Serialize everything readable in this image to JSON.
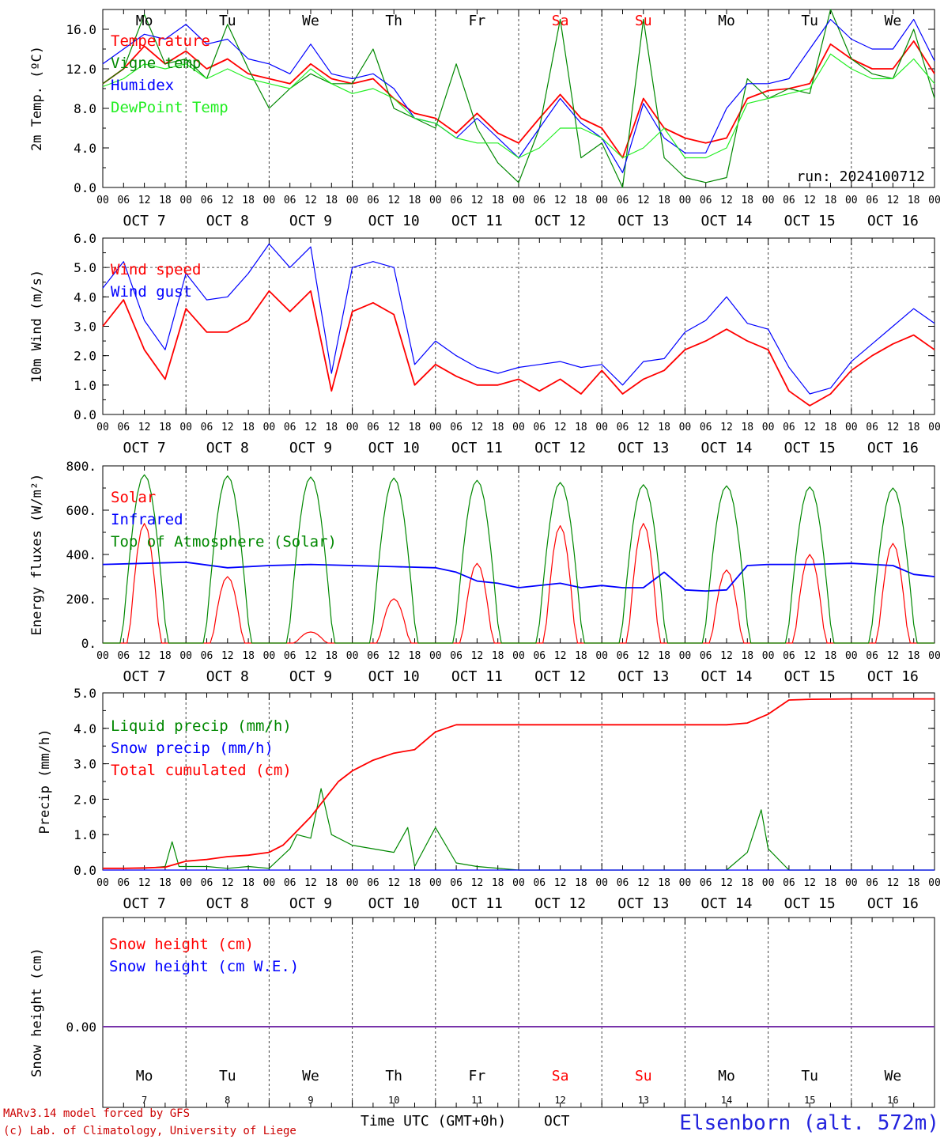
{
  "chart_data": {
    "type": "line",
    "x_axis": {
      "unit_label": "Time UTC (GMT+0h)",
      "month": "OCT",
      "dates": [
        "OCT  7",
        "OCT  8",
        "OCT  9",
        "OCT 10",
        "OCT 11",
        "OCT 12",
        "OCT 13",
        "OCT 14",
        "OCT 15",
        "OCT 16"
      ],
      "weekdays": [
        "Mo",
        "Tu",
        "We",
        "Th",
        "Fr",
        "Sa",
        "Su",
        "Mo",
        "Tu",
        "We"
      ],
      "weekend_days": [
        "Sa",
        "Su"
      ],
      "day_numbers": [
        "7",
        "8",
        "9",
        "10",
        "11",
        "12",
        "13",
        "14",
        "15",
        "16"
      ],
      "hour_ticks": [
        "00",
        "06",
        "12",
        "18"
      ],
      "range_hours": [
        0,
        240
      ]
    },
    "panels": [
      {
        "id": "temperature",
        "ylabel": "2m Temp. (ºC)",
        "ylim": [
          0,
          18
        ],
        "yticks": [
          "0.0",
          "4.0",
          "8.0",
          "12.0",
          "16.0"
        ],
        "ytick_values": [
          0,
          4,
          8,
          12,
          16
        ],
        "annotation": "run: 2024100712",
        "series": [
          {
            "name": "Temperature",
            "color": "#ff0000",
            "x": [
              0,
              6,
              12,
              18,
              24,
              30,
              36,
              42,
              48,
              54,
              60,
              66,
              72,
              78,
              84,
              90,
              96,
              102,
              108,
              114,
              120,
              126,
              132,
              138,
              144,
              150,
              156,
              162,
              168,
              174,
              180,
              186,
              192,
              198,
              204,
              210,
              216,
              222,
              228,
              234,
              240
            ],
            "values": [
              10.5,
              12,
              14.3,
              12.5,
              13.8,
              12,
              13,
              11.5,
              11,
              10.5,
              12.5,
              11,
              10.5,
              11,
              9,
              7.5,
              7,
              5.5,
              7.5,
              5.5,
              4.5,
              7,
              9.4,
              7,
              6,
              3,
              9,
              6,
              5,
              4.5,
              5,
              9,
              9.8,
              10,
              10.5,
              14.5,
              13,
              12,
              12,
              14.8,
              11.5
            ]
          },
          {
            "name": "Vigne temp",
            "color": "#008800",
            "x": [
              0,
              6,
              12,
              18,
              24,
              30,
              36,
              42,
              48,
              54,
              60,
              66,
              72,
              78,
              84,
              90,
              96,
              102,
              108,
              114,
              120,
              126,
              132,
              138,
              144,
              150,
              156,
              162,
              168,
              174,
              180,
              186,
              192,
              198,
              204,
              210,
              216,
              222,
              228,
              234,
              240
            ],
            "values": [
              10.5,
              12,
              17.5,
              12.5,
              13,
              11,
              16.5,
              12,
              8,
              10,
              11.5,
              10.5,
              10.5,
              14,
              8,
              7,
              6,
              12.5,
              6,
              2.5,
              0.5,
              6,
              17,
              3,
              4.5,
              0,
              17,
              3,
              1,
              0.5,
              1,
              11,
              9,
              10,
              9.5,
              18,
              13,
              11.5,
              11,
              16,
              9
            ]
          },
          {
            "name": "Humidex",
            "color": "#0000ff",
            "x": [
              0,
              6,
              12,
              18,
              24,
              30,
              36,
              42,
              48,
              54,
              60,
              66,
              72,
              78,
              84,
              90,
              96,
              102,
              108,
              114,
              120,
              126,
              132,
              138,
              144,
              150,
              156,
              162,
              168,
              174,
              180,
              186,
              192,
              198,
              204,
              210,
              216,
              222,
              228,
              234,
              240
            ],
            "values": [
              12.5,
              14,
              15.5,
              15,
              16.5,
              14.5,
              15,
              13,
              12.5,
              11.5,
              14.5,
              11.5,
              11,
              11.5,
              10,
              7,
              6.5,
              5,
              7,
              5,
              3,
              6,
              9,
              6.5,
              5,
              1.5,
              8.5,
              5,
              3.5,
              3.5,
              8,
              10.5,
              10.5,
              11,
              14,
              17,
              15,
              14,
              14,
              17,
              12.8
            ]
          },
          {
            "name": "DewPoint Temp",
            "color": "#22ee22",
            "x": [
              0,
              6,
              12,
              18,
              24,
              30,
              36,
              42,
              48,
              54,
              60,
              66,
              72,
              78,
              84,
              90,
              96,
              102,
              108,
              114,
              120,
              126,
              132,
              138,
              144,
              150,
              156,
              162,
              168,
              174,
              180,
              186,
              192,
              198,
              204,
              210,
              216,
              222,
              228,
              234,
              240
            ],
            "values": [
              10.2,
              11,
              12.5,
              12,
              12.5,
              11,
              12,
              11,
              10.5,
              10,
              12,
              10.5,
              9.5,
              10,
              9,
              7,
              6.5,
              5,
              4.5,
              4.5,
              3,
              4,
              6,
              6,
              5,
              3,
              4,
              6,
              3,
              3,
              4,
              8.5,
              9,
              9.5,
              10,
              13.5,
              12,
              11,
              11,
              13,
              10.5
            ]
          }
        ]
      },
      {
        "id": "wind",
        "ylabel": "10m Wind (m/s)",
        "ylim": [
          0,
          6
        ],
        "yticks": [
          "0.0",
          "1.0",
          "2.0",
          "3.0",
          "4.0",
          "5.0",
          "6.0"
        ],
        "ytick_values": [
          0,
          1,
          2,
          3,
          4,
          5,
          6
        ],
        "reference_line": 5,
        "series": [
          {
            "name": "Wind speed",
            "color": "#ff0000",
            "x": [
              0,
              6,
              12,
              18,
              24,
              30,
              36,
              42,
              48,
              54,
              60,
              66,
              72,
              78,
              84,
              90,
              96,
              102,
              108,
              114,
              120,
              126,
              132,
              138,
              144,
              150,
              156,
              162,
              168,
              174,
              180,
              186,
              192,
              198,
              204,
              210,
              216,
              222,
              228,
              234,
              240
            ],
            "values": [
              3,
              3.9,
              2.2,
              1.2,
              3.6,
              2.8,
              2.8,
              3.2,
              4.2,
              3.5,
              4.2,
              0.8,
              3.5,
              3.8,
              3.4,
              1,
              1.7,
              1.3,
              1,
              1,
              1.2,
              0.8,
              1.2,
              0.7,
              1.5,
              0.7,
              1.2,
              1.5,
              2.2,
              2.5,
              2.9,
              2.5,
              2.2,
              0.8,
              0.3,
              0.7,
              1.5,
              2,
              2.4,
              2.7,
              2.2
            ]
          },
          {
            "name": "Wind gust",
            "color": "#0000ff",
            "x": [
              0,
              6,
              12,
              18,
              24,
              30,
              36,
              42,
              48,
              54,
              60,
              66,
              72,
              78,
              84,
              90,
              96,
              102,
              108,
              114,
              120,
              126,
              132,
              138,
              144,
              150,
              156,
              162,
              168,
              174,
              180,
              186,
              192,
              198,
              204,
              210,
              216,
              222,
              228,
              234,
              240
            ],
            "values": [
              4.3,
              5.2,
              3.2,
              2.2,
              4.8,
              3.9,
              4,
              4.8,
              5.8,
              5,
              5.7,
              1.4,
              5,
              5.2,
              5,
              1.7,
              2.5,
              2,
              1.6,
              1.4,
              1.6,
              1.7,
              1.8,
              1.6,
              1.7,
              1,
              1.8,
              1.9,
              2.8,
              3.2,
              4,
              3.1,
              2.9,
              1.6,
              0.7,
              0.9,
              1.8,
              2.4,
              3,
              3.6,
              3.1
            ]
          }
        ]
      },
      {
        "id": "energy",
        "ylabel": "Energy fluxes (W/m²)",
        "ylim": [
          0,
          800
        ],
        "yticks": [
          "0.",
          "200.",
          "400.",
          "600.",
          "800."
        ],
        "ytick_values": [
          0,
          200,
          400,
          600,
          800
        ],
        "series": [
          {
            "name": "Solar",
            "color": "#ff0000",
            "peaks": [
              540,
              300,
              50,
              200,
              360,
              530,
              540,
              330,
              400,
              450
            ]
          },
          {
            "name": "Infrared",
            "color": "#0000ff",
            "x": [
              0,
              12,
              24,
              36,
              48,
              60,
              72,
              84,
              96,
              102,
              108,
              114,
              120,
              132,
              138,
              144,
              150,
              156,
              162,
              168,
              174,
              180,
              186,
              192,
              204,
              216,
              228,
              234,
              240
            ],
            "values": [
              355,
              360,
              365,
              340,
              350,
              355,
              350,
              345,
              340,
              320,
              280,
              270,
              250,
              270,
              250,
              260,
              250,
              250,
              320,
              240,
              235,
              240,
              350,
              355,
              355,
              360,
              350,
              310,
              300
            ]
          },
          {
            "name": "Top of Atmosphere (Solar)",
            "color": "#008800",
            "peaks": [
              760,
              755,
              750,
              745,
              735,
              725,
              715,
              710,
              705,
              700
            ]
          }
        ]
      },
      {
        "id": "precip",
        "ylabel": "Precip (mm/h)",
        "ylim": [
          0,
          5
        ],
        "yticks": [
          "0.0",
          "1.0",
          "2.0",
          "3.0",
          "4.0",
          "5.0"
        ],
        "ytick_values": [
          0,
          1,
          2,
          3,
          4,
          5
        ],
        "series": [
          {
            "name": "Liquid precip (mm/h)",
            "color": "#008800",
            "x": [
              0,
              12,
              18,
              20,
              22,
              24,
              30,
              36,
              42,
              48,
              54,
              56,
              60,
              63,
              66,
              72,
              78,
              84,
              88,
              90,
              96,
              102,
              108,
              120,
              150,
              180,
              186,
              188,
              190,
              192,
              196,
              198,
              204,
              216,
              240
            ],
            "values": [
              0.05,
              0.05,
              0.1,
              0.8,
              0.1,
              0.1,
              0.1,
              0.05,
              0.1,
              0.05,
              0.6,
              1,
              0.9,
              2.3,
              1,
              0.7,
              0.6,
              0.5,
              1.2,
              0.1,
              1.2,
              0.2,
              0.1,
              0,
              0,
              0,
              0.5,
              1.1,
              1.7,
              0.6,
              0.2,
              0,
              0,
              0,
              0
            ]
          },
          {
            "name": "Snow precip (mm/h)",
            "color": "#0000ff",
            "x": [
              0,
              240
            ],
            "values": [
              0,
              0
            ]
          },
          {
            "name": "Total cumulated (cm)",
            "color": "#ff0000",
            "x": [
              0,
              6,
              12,
              18,
              24,
              30,
              36,
              42,
              48,
              52,
              56,
              60,
              64,
              68,
              72,
              78,
              84,
              90,
              96,
              102,
              108,
              120,
              150,
              180,
              186,
              192,
              198,
              204,
              216,
              240
            ],
            "values": [
              0.05,
              0.05,
              0.06,
              0.08,
              0.25,
              0.3,
              0.38,
              0.42,
              0.5,
              0.7,
              1.1,
              1.5,
              2,
              2.5,
              2.8,
              3.1,
              3.3,
              3.4,
              3.9,
              4.1,
              4.1,
              4.1,
              4.1,
              4.1,
              4.15,
              4.4,
              4.8,
              4.82,
              4.83,
              4.83
            ]
          }
        ]
      },
      {
        "id": "snow",
        "ylabel": "Snow height (cm)",
        "yticks": [
          "0.00"
        ],
        "ytick_values": [
          0
        ],
        "series": [
          {
            "name": "Snow height (cm)",
            "color": "#ff0000",
            "x": [
              0,
              240
            ],
            "values": [
              0,
              0
            ]
          },
          {
            "name": "Snow height (cm W.E.)",
            "color": "#0000ff",
            "x": [
              0,
              240
            ],
            "values": [
              0,
              0
            ]
          }
        ]
      }
    ]
  },
  "footer": {
    "model_line": "MARv3.14 model forced by GFS",
    "lab_line": "(c) Lab. of Climatology, University of Liege",
    "station": "Elsenborn (alt. 572m)"
  },
  "colors": {
    "weekday": "#000000",
    "weekend": "#ff0000"
  }
}
